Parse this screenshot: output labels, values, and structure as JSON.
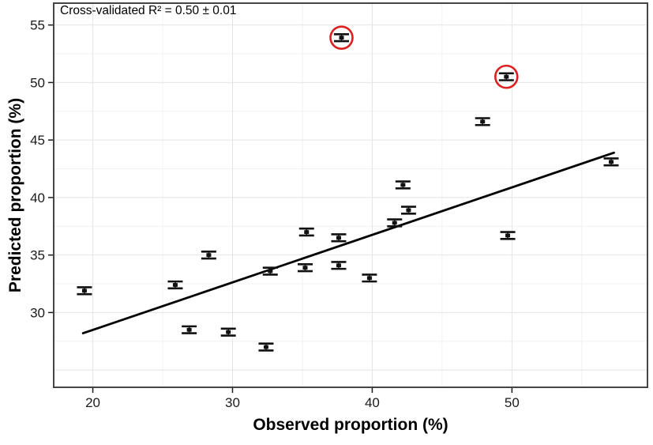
{
  "chart_data": {
    "type": "scatter",
    "annotation": "Cross-validated R² = 0.50 ± 0.01",
    "xlabel": "Observed proportion (%)",
    "ylabel": "Predicted proportion (%)",
    "xlim": [
      17.2,
      59.7
    ],
    "ylim": [
      23.5,
      56.9
    ],
    "x_ticks": [
      20,
      30,
      40,
      50
    ],
    "y_ticks": [
      30,
      35,
      40,
      45,
      50,
      55
    ],
    "grid": {
      "x_major": [
        20,
        30,
        40,
        50
      ],
      "x_minor": [
        25,
        35,
        45,
        55
      ],
      "y_major": [
        25,
        30,
        35,
        40,
        45,
        50,
        55
      ],
      "y_minor": [
        27.5,
        32.5,
        37.5,
        42.5,
        47.5,
        52.5
      ]
    },
    "grid_on": true,
    "legend": "none",
    "points": [
      {
        "x": 37.8,
        "y": 53.9,
        "yerr": 0.3,
        "circled": true
      },
      {
        "x": 49.6,
        "y": 50.5,
        "yerr": 0.3,
        "circled": true
      },
      {
        "x": 47.9,
        "y": 46.6,
        "yerr": 0.3,
        "circled": false
      },
      {
        "x": 57.1,
        "y": 43.1,
        "yerr": 0.3,
        "circled": false
      },
      {
        "x": 42.2,
        "y": 41.1,
        "yerr": 0.3,
        "circled": false
      },
      {
        "x": 42.6,
        "y": 38.9,
        "yerr": 0.3,
        "circled": false
      },
      {
        "x": 41.6,
        "y": 37.8,
        "yerr": 0.3,
        "circled": false
      },
      {
        "x": 35.3,
        "y": 37.0,
        "yerr": 0.3,
        "circled": false
      },
      {
        "x": 37.6,
        "y": 36.5,
        "yerr": 0.3,
        "circled": false
      },
      {
        "x": 49.7,
        "y": 36.7,
        "yerr": 0.3,
        "circled": false
      },
      {
        "x": 37.6,
        "y": 34.1,
        "yerr": 0.3,
        "circled": false
      },
      {
        "x": 35.2,
        "y": 33.9,
        "yerr": 0.3,
        "circled": false
      },
      {
        "x": 32.7,
        "y": 33.6,
        "yerr": 0.3,
        "circled": false
      },
      {
        "x": 39.8,
        "y": 33.0,
        "yerr": 0.3,
        "circled": false
      },
      {
        "x": 19.4,
        "y": 31.9,
        "yerr": 0.3,
        "circled": false
      },
      {
        "x": 25.9,
        "y": 32.4,
        "yerr": 0.3,
        "circled": false
      },
      {
        "x": 28.3,
        "y": 35.0,
        "yerr": 0.3,
        "circled": false
      },
      {
        "x": 26.9,
        "y": 28.5,
        "yerr": 0.3,
        "circled": false
      },
      {
        "x": 29.7,
        "y": 28.3,
        "yerr": 0.3,
        "circled": false
      },
      {
        "x": 32.4,
        "y": 27.0,
        "yerr": 0.3,
        "circled": false
      }
    ],
    "regression_line": {
      "x1": 19.3,
      "y1": 28.2,
      "x2": 57.3,
      "y2": 43.9
    },
    "colors": {
      "point": "#111111",
      "regression_line": "#000000",
      "outlier_circle": "#dd1f1f",
      "grid_major": "#e4e4e4",
      "grid_minor": "#f1f1f1",
      "panel_border": "#454545",
      "tick": "#1a1a1a"
    }
  }
}
